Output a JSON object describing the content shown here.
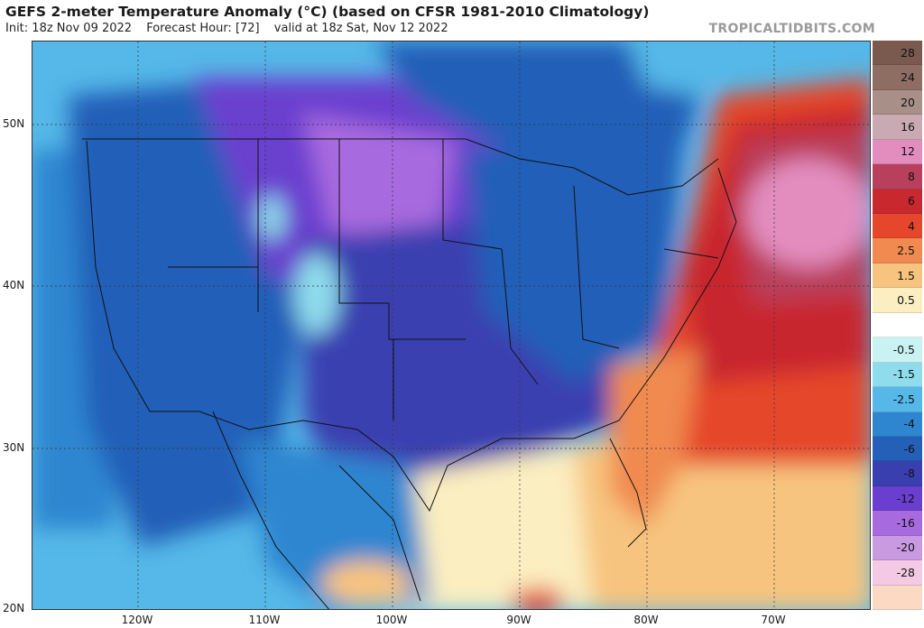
{
  "header": {
    "title": "GEFS 2-meter Temperature Anomaly (°C) (based on CFSR 1981-2010 Climatology)",
    "init": "Init: 18z Nov 09 2022",
    "forecast_hour": "Forecast Hour: [72]",
    "valid": "valid at 18z Sat, Nov 12 2022",
    "watermark": "TROPICALTIDBITS.COM"
  },
  "axes": {
    "lat_labels": [
      "50N",
      "40N",
      "30N",
      "20N"
    ],
    "lon_labels": [
      "120W",
      "110W",
      "100W",
      "90W",
      "80W",
      "70W"
    ]
  },
  "colorbar": {
    "levels": [
      {
        "label": "28",
        "color": "#7a5a4e"
      },
      {
        "label": "24",
        "color": "#8e6d63"
      },
      {
        "label": "20",
        "color": "#a88f88"
      },
      {
        "label": "16",
        "color": "#c9a9b2"
      },
      {
        "label": "12",
        "color": "#e38dbf"
      },
      {
        "label": "8",
        "color": "#b9405c"
      },
      {
        "label": "6",
        "color": "#c8282e"
      },
      {
        "label": "4",
        "color": "#e5462c"
      },
      {
        "label": "2.5",
        "color": "#f08a50"
      },
      {
        "label": "1.5",
        "color": "#f7c47f"
      },
      {
        "label": "0.5",
        "color": "#fbeec0"
      },
      {
        "label": "",
        "color": "#ffffff"
      },
      {
        "label": "-0.5",
        "color": "#c9f2f2"
      },
      {
        "label": "-1.5",
        "color": "#8fdcec"
      },
      {
        "label": "-2.5",
        "color": "#55b8e8"
      },
      {
        "label": "-4",
        "color": "#2f86d0"
      },
      {
        "label": "-6",
        "color": "#245fb8"
      },
      {
        "label": "-8",
        "color": "#3a3fb0"
      },
      {
        "label": "-12",
        "color": "#6a3fcf"
      },
      {
        "label": "-16",
        "color": "#a86adf"
      },
      {
        "label": "-20",
        "color": "#c99ae0"
      },
      {
        "label": "-28",
        "color": "#f3c9e3"
      },
      {
        "label": "",
        "color": "#fcd9c2"
      }
    ]
  }
}
